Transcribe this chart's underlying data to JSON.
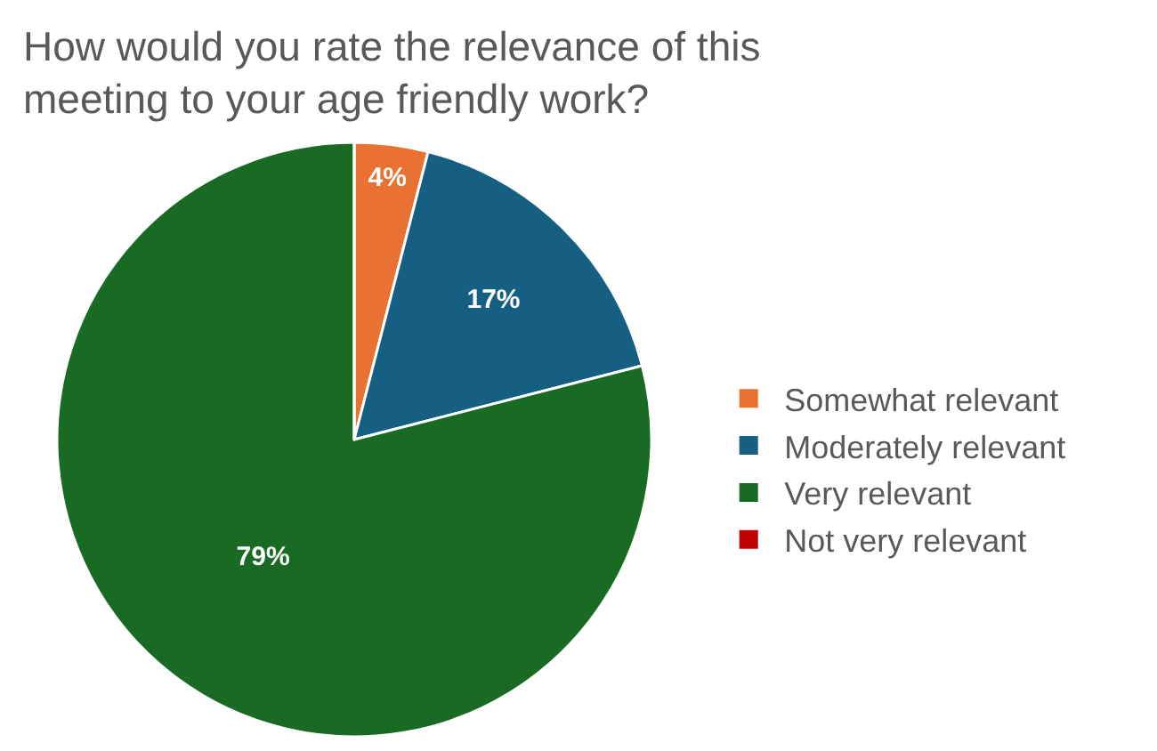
{
  "chart_data": {
    "type": "pie",
    "title": "How would you rate the relevance of this meeting to your age friendly work?",
    "categories": [
      "Somewhat relevant",
      "Moderately relevant",
      "Very relevant",
      "Not very relevant"
    ],
    "values": [
      4,
      17,
      79,
      0
    ],
    "colors": [
      "#e97132",
      "#156082",
      "#196b24",
      "#c00000"
    ],
    "value_labels": [
      "4%",
      "17%",
      "79%",
      null
    ],
    "legend": "right"
  }
}
